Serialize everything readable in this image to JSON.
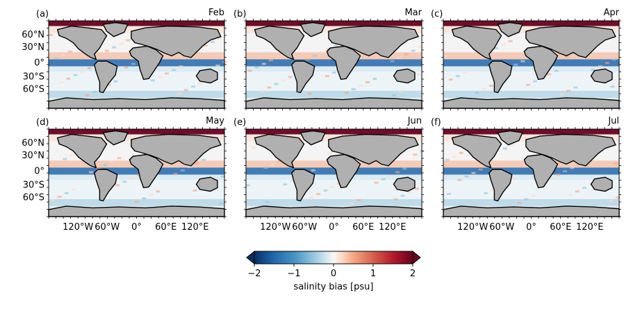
{
  "panels": [
    {
      "letter": "(a)",
      "month": "Feb"
    },
    {
      "letter": "(b)",
      "month": "Mar"
    },
    {
      "letter": "(c)",
      "month": "Apr"
    },
    {
      "letter": "(d)",
      "month": "May"
    },
    {
      "letter": "(e)",
      "month": "Jun"
    },
    {
      "letter": "(f)",
      "month": "Jul"
    }
  ],
  "lat_ticks": [
    "60°N",
    "30°N",
    "0°",
    "30°S",
    "60°S"
  ],
  "lon_ticks": [
    "120°W",
    "60°W",
    "0°",
    "60°E",
    "120°E"
  ],
  "colorbar": {
    "label": "salinity bias [psu]",
    "ticks": [
      "−2",
      "−1",
      "0",
      "1",
      "2"
    ],
    "min": -2,
    "max": 2,
    "colors": [
      "#053061",
      "#2166ac",
      "#4393c3",
      "#92c5de",
      "#d1e5f0",
      "#f7f7f7",
      "#fddbc7",
      "#f4a582",
      "#d6604d",
      "#b2182b",
      "#67001f"
    ]
  },
  "land_color": "#b0b0b0"
}
